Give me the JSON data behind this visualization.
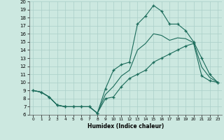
{
  "xlabel": "Humidex (Indice chaleur)",
  "bg_color": "#cce8e0",
  "line_color": "#1a6b5a",
  "grid_color": "#aacfc8",
  "x": [
    0,
    1,
    2,
    3,
    4,
    5,
    6,
    7,
    8,
    9,
    10,
    11,
    12,
    13,
    14,
    15,
    16,
    17,
    18,
    19,
    20,
    21,
    22,
    23
  ],
  "y_max": [
    9.0,
    8.8,
    8.2,
    7.2,
    7.0,
    7.0,
    7.0,
    7.0,
    6.2,
    9.2,
    11.5,
    12.2,
    12.5,
    17.2,
    18.2,
    19.5,
    18.8,
    17.2,
    17.2,
    16.4,
    15.0,
    13.0,
    11.0,
    10.0
  ],
  "y_min": [
    9.0,
    8.8,
    8.2,
    7.2,
    7.0,
    7.0,
    7.0,
    7.0,
    6.2,
    8.0,
    8.2,
    9.5,
    10.5,
    11.0,
    11.5,
    12.5,
    13.0,
    13.5,
    14.0,
    14.5,
    14.8,
    10.8,
    10.2,
    10.0
  ],
  "y_avg": [
    9.0,
    8.8,
    8.2,
    7.2,
    7.0,
    7.0,
    7.0,
    7.0,
    6.2,
    8.5,
    9.5,
    10.8,
    11.5,
    14.0,
    14.8,
    16.0,
    15.8,
    15.2,
    15.5,
    15.4,
    14.9,
    11.9,
    10.6,
    10.0
  ],
  "ylim": [
    6,
    20
  ],
  "xlim": [
    -0.5,
    23.5
  ],
  "yticks": [
    6,
    7,
    8,
    9,
    10,
    11,
    12,
    13,
    14,
    15,
    16,
    17,
    18,
    19,
    20
  ],
  "xticks": [
    0,
    1,
    2,
    3,
    4,
    5,
    6,
    7,
    8,
    9,
    10,
    11,
    12,
    13,
    14,
    15,
    16,
    17,
    18,
    19,
    20,
    21,
    22,
    23
  ]
}
